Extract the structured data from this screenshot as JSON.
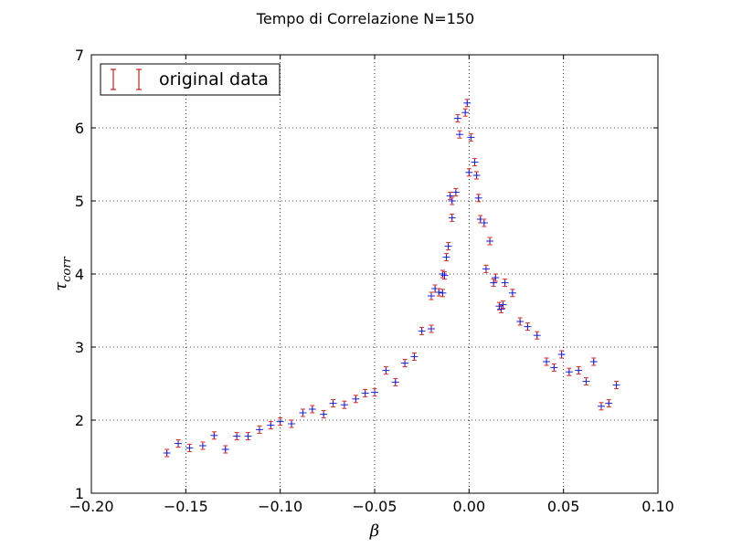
{
  "chart_data": {
    "type": "scatter",
    "title": "Tempo di Correlazione N=150",
    "xlabel": "β",
    "ylabel": "τ",
    "ylabel_sub": "corr",
    "xlim": [
      -0.2,
      0.1
    ],
    "ylim": [
      1,
      7
    ],
    "xticks": [
      -0.2,
      -0.15,
      -0.1,
      -0.05,
      0.0,
      0.05,
      0.1
    ],
    "xtick_labels": [
      "−0.20",
      "−0.15",
      "−0.10",
      "−0.05",
      "0.00",
      "0.05",
      "0.10"
    ],
    "yticks": [
      1,
      2,
      3,
      4,
      5,
      6,
      7
    ],
    "ytick_labels": [
      "1",
      "2",
      "3",
      "4",
      "5",
      "6",
      "7"
    ],
    "grid": true,
    "legend": {
      "position": "top-left",
      "entries": [
        "original data"
      ]
    },
    "colors": {
      "errorbar": "#d62728",
      "marker": "#1f1fd1",
      "legend_bar": "#c81e1e"
    },
    "series": [
      {
        "name": "original data",
        "x": [
          -0.16,
          -0.154,
          -0.148,
          -0.141,
          -0.135,
          -0.129,
          -0.123,
          -0.117,
          -0.111,
          -0.105,
          -0.1,
          -0.094,
          -0.088,
          -0.083,
          -0.077,
          -0.072,
          -0.066,
          -0.06,
          -0.055,
          -0.05,
          -0.044,
          -0.039,
          -0.034,
          -0.029,
          -0.025,
          -0.02,
          -0.02,
          -0.018,
          -0.016,
          -0.014,
          -0.014,
          -0.013,
          -0.012,
          -0.011,
          -0.01,
          -0.009,
          -0.009,
          -0.007,
          -0.006,
          -0.005,
          -0.002,
          -0.001,
          0.0,
          0.001,
          0.003,
          0.004,
          0.005,
          0.006,
          0.008,
          0.009,
          0.011,
          0.013,
          0.014,
          0.016,
          0.017,
          0.018,
          0.019,
          0.023,
          0.027,
          0.031,
          0.036,
          0.041,
          0.045,
          0.049,
          0.053,
          0.058,
          0.062,
          0.066,
          0.07,
          0.074,
          0.078
        ],
        "y": [
          1.55,
          1.68,
          1.62,
          1.65,
          1.79,
          1.6,
          1.78,
          1.78,
          1.87,
          1.93,
          1.98,
          1.95,
          2.1,
          2.15,
          2.08,
          2.23,
          2.21,
          2.29,
          2.37,
          2.38,
          2.68,
          2.52,
          2.78,
          2.87,
          3.22,
          3.25,
          3.7,
          3.8,
          3.75,
          3.74,
          4.0,
          3.98,
          4.23,
          4.38,
          5.07,
          5.0,
          4.77,
          5.12,
          6.13,
          5.91,
          6.21,
          6.34,
          5.39,
          5.87,
          5.53,
          5.35,
          5.04,
          4.75,
          4.7,
          4.07,
          4.45,
          3.88,
          3.95,
          3.56,
          3.52,
          3.58,
          3.88,
          3.74,
          3.35,
          3.28,
          3.16,
          2.8,
          2.72,
          2.9,
          2.66,
          2.68,
          2.53,
          2.8,
          2.19,
          2.23,
          2.48
        ]
      }
    ]
  }
}
